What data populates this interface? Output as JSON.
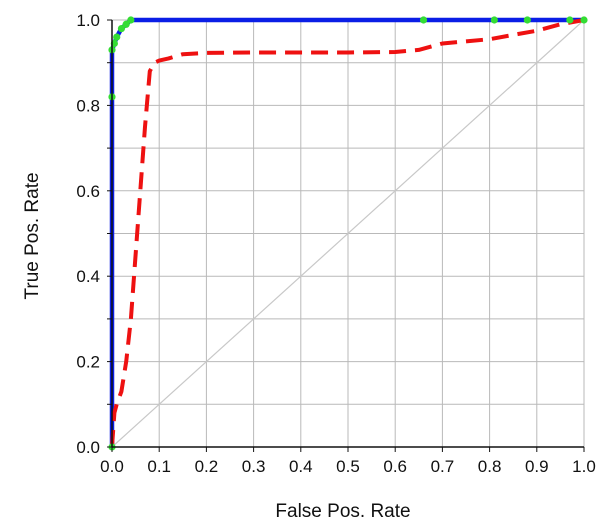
{
  "chart_data": {
    "type": "line",
    "title": "",
    "xlabel": "False Pos. Rate",
    "ylabel": "True Pos. Rate",
    "xlim": [
      0.0,
      1.0
    ],
    "ylim": [
      0.0,
      1.0
    ],
    "grid": true,
    "x_ticks": [
      "0.0",
      "0.1",
      "0.2",
      "0.3",
      "0.4",
      "0.5",
      "0.6",
      "0.7",
      "0.8",
      "0.9",
      "1.0"
    ],
    "y_ticks": [
      "0.0",
      "0.2",
      "0.4",
      "0.6",
      "0.8",
      "1.0"
    ],
    "y_ticks_unlabeled": [
      0.1,
      0.3,
      0.5,
      0.7,
      0.9
    ],
    "series": [
      {
        "style": "solid",
        "color": "#0a1ee6",
        "marker_color": "#33dd33",
        "points": [
          [
            0.0,
            0.0
          ],
          [
            0.0,
            0.82
          ],
          [
            0.0,
            0.93
          ],
          [
            0.005,
            0.945
          ],
          [
            0.01,
            0.96
          ],
          [
            0.02,
            0.98
          ],
          [
            0.03,
            0.99
          ],
          [
            0.04,
            1.0
          ],
          [
            0.66,
            1.0
          ],
          [
            0.81,
            1.0
          ],
          [
            0.88,
            1.0
          ],
          [
            0.97,
            1.0
          ],
          [
            1.0,
            1.0
          ]
        ]
      },
      {
        "style": "dashed",
        "color": "#ee1111",
        "points": [
          [
            0.0,
            0.0
          ],
          [
            0.005,
            0.08
          ],
          [
            0.01,
            0.1
          ],
          [
            0.02,
            0.13
          ],
          [
            0.03,
            0.2
          ],
          [
            0.04,
            0.3
          ],
          [
            0.05,
            0.45
          ],
          [
            0.06,
            0.6
          ],
          [
            0.07,
            0.75
          ],
          [
            0.08,
            0.88
          ],
          [
            0.09,
            0.9
          ],
          [
            0.1,
            0.905
          ],
          [
            0.12,
            0.91
          ],
          [
            0.15,
            0.92
          ],
          [
            0.2,
            0.923
          ],
          [
            0.3,
            0.924
          ],
          [
            0.4,
            0.924
          ],
          [
            0.5,
            0.924
          ],
          [
            0.6,
            0.925
          ],
          [
            0.65,
            0.93
          ],
          [
            0.7,
            0.945
          ],
          [
            0.8,
            0.955
          ],
          [
            0.85,
            0.965
          ],
          [
            0.9,
            0.975
          ],
          [
            0.95,
            0.99
          ],
          [
            1.0,
            1.0
          ]
        ]
      },
      {
        "style": "diagonal",
        "color": "#c8c8c8",
        "points": [
          [
            0.0,
            0.0
          ],
          [
            1.0,
            1.0
          ]
        ]
      }
    ],
    "colors": {
      "grid": "#b9b9b9",
      "frame": "#111111",
      "background": "#ffffff"
    }
  }
}
